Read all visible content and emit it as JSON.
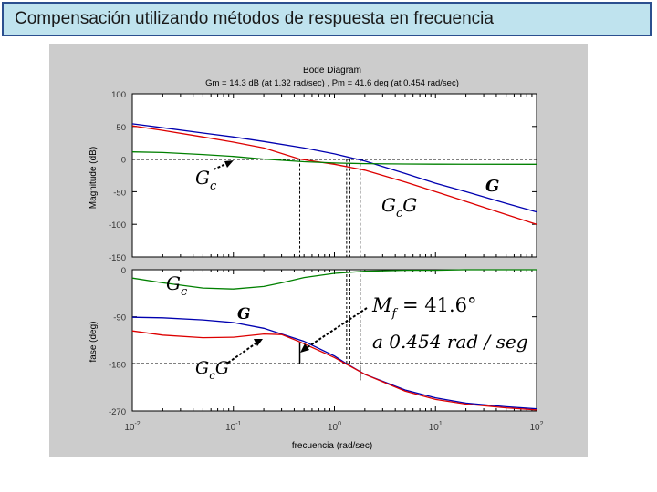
{
  "slide": {
    "title": "Compensación utilizando métodos de respuesta en frecuencia"
  },
  "colors": {
    "title_bg": "#bfe3ee",
    "title_border": "#2b4f8f",
    "figure_bg": "#cccccc",
    "G": "#0000b0",
    "Gc": "#008000",
    "GcG": "#dd0000"
  },
  "chart_data": {
    "type": "line",
    "title": "Bode Diagram",
    "subtitle": "Gm = 14.3 dB (at 1.32 rad/sec) ,  Pm = 41.6 deg (at 0.454 rad/sec)",
    "xlabel": "frecuencia  (rad/sec)",
    "x_scale": "log",
    "xlim": [
      0.01,
      100
    ],
    "x_ticks": [
      {
        "value": 0.01,
        "base": "10",
        "exp": "-2"
      },
      {
        "value": 0.1,
        "base": "10",
        "exp": "-1"
      },
      {
        "value": 1,
        "base": "10",
        "exp": "0"
      },
      {
        "value": 10,
        "base": "10",
        "exp": "1"
      },
      {
        "value": 100,
        "base": "10",
        "exp": "2"
      }
    ],
    "magnitude": {
      "ylabel": "Magnitude (dB)",
      "ylim": [
        -150,
        100
      ],
      "yticks": [
        100,
        50,
        0,
        -50,
        -100,
        -150
      ],
      "series": [
        {
          "key": "G",
          "x": [
            0.01,
            0.02,
            0.05,
            0.1,
            0.2,
            0.5,
            1,
            2,
            5,
            10,
            20,
            50,
            100
          ],
          "y": [
            54,
            48,
            40,
            34,
            27,
            17,
            8,
            -3,
            -22,
            -37,
            -50,
            -68,
            -81
          ]
        },
        {
          "key": "GcG",
          "x": [
            0.01,
            0.02,
            0.05,
            0.1,
            0.2,
            0.454,
            1,
            2,
            5,
            10,
            20,
            50,
            100
          ],
          "y": [
            51,
            44,
            34,
            26,
            17,
            0,
            -8,
            -17,
            -35,
            -50,
            -65,
            -85,
            -100
          ]
        },
        {
          "key": "Gc",
          "x": [
            0.01,
            0.02,
            0.05,
            0.1,
            0.2,
            0.5,
            1,
            2,
            5,
            10,
            100
          ],
          "y": [
            11,
            10,
            7,
            4,
            0,
            -4,
            -6,
            -7,
            -7.5,
            -7.8,
            -8
          ]
        }
      ]
    },
    "phase": {
      "ylabel": "fase (deg)",
      "ylim": [
        -270,
        0
      ],
      "yticks": [
        0,
        -90,
        -180,
        -270
      ],
      "series": [
        {
          "key": "Gc",
          "x": [
            0.01,
            0.02,
            0.05,
            0.1,
            0.2,
            0.3,
            0.5,
            1,
            2,
            5,
            10,
            20,
            50,
            100
          ],
          "y": [
            -16,
            -25,
            -35,
            -37,
            -32,
            -25,
            -15,
            -7,
            -3,
            -1,
            -1,
            0,
            0,
            0
          ]
        },
        {
          "key": "G",
          "x": [
            0.01,
            0.02,
            0.05,
            0.1,
            0.2,
            0.5,
            1,
            1.32,
            2,
            5,
            10,
            20,
            50,
            100
          ],
          "y": [
            -91,
            -92,
            -96,
            -101,
            -112,
            -137,
            -165,
            -180,
            -200,
            -230,
            -245,
            -255,
            -262,
            -266
          ]
        },
        {
          "key": "GcG",
          "x": [
            0.01,
            0.02,
            0.05,
            0.1,
            0.2,
            0.3,
            0.454,
            1,
            2,
            5,
            10,
            20,
            50,
            100
          ],
          "y": [
            -117,
            -125,
            -130,
            -129,
            -123,
            -124,
            -138,
            -168,
            -200,
            -232,
            -248,
            -257,
            -264,
            -268
          ]
        }
      ]
    },
    "annotations": {
      "mag_Gc": {
        "base": "G",
        "sub": "c"
      },
      "mag_G": {
        "base": "G"
      },
      "mag_GcG": {
        "base": "G",
        "sub": "c",
        "tail": "G"
      },
      "ph_Gc": {
        "base": "G",
        "sub": "c"
      },
      "ph_G": {
        "base": "G"
      },
      "ph_GcG": {
        "base": "G",
        "sub": "c",
        "tail": "G"
      },
      "pm_line1": {
        "pre": "M",
        "sub": "f",
        "rest": " = 41.6°"
      },
      "pm_line2": "a 0.454 rad / seg"
    },
    "markers": {
      "wgc": 0.454,
      "wpc": 1.32,
      "wpc_b": 1.42,
      "wg2": 1.8
    }
  }
}
